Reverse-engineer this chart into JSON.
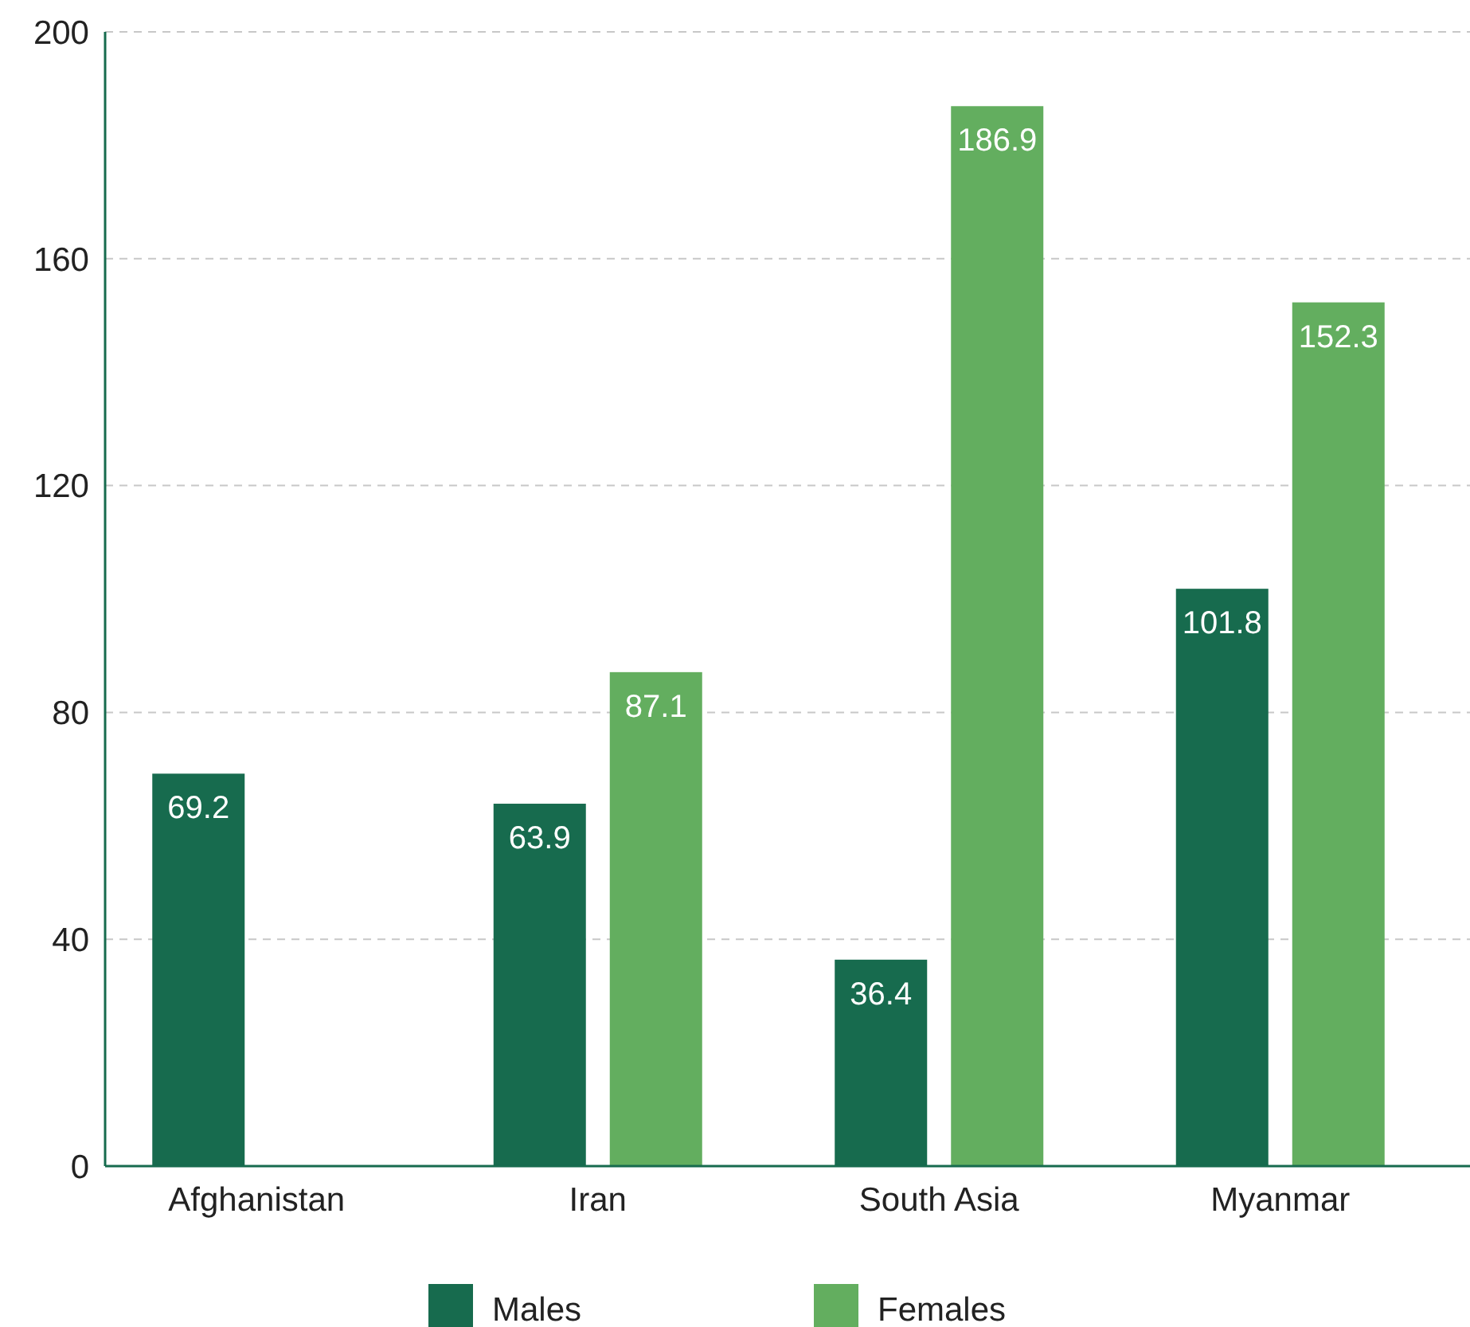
{
  "chart_data": {
    "type": "bar",
    "categories": [
      "Afghanistan",
      "Iran",
      "South Asia",
      "Myanmar"
    ],
    "series": [
      {
        "name": "Males",
        "color": "#176b4e",
        "values": [
          69.2,
          63.9,
          36.4,
          101.8
        ]
      },
      {
        "name": "Females",
        "color": "#63ae5f",
        "values": [
          null,
          87.1,
          186.9,
          152.3
        ]
      }
    ],
    "ylim": [
      0,
      200
    ],
    "yticks": [
      0,
      40,
      80,
      120,
      160,
      200
    ],
    "grid": "y",
    "legend": "bottom",
    "data_labels": true
  }
}
